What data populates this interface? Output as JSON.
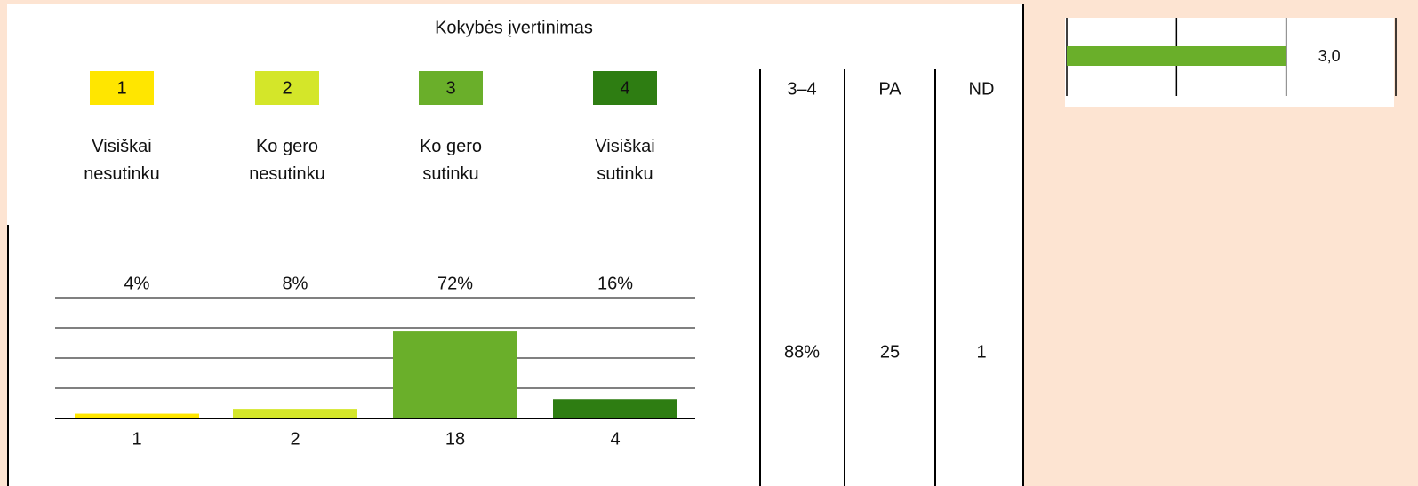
{
  "title": "Kokybės įvertinimas",
  "scale": [
    {
      "code": "1",
      "label": "Visiškai nesutinku",
      "color": "#ffe600"
    },
    {
      "code": "2",
      "label": "Ko gero nesutinku",
      "color": "#d4e629"
    },
    {
      "code": "3",
      "label": "Ko gero sutinku",
      "color": "#6aaf2a"
    },
    {
      "code": "4",
      "label": "Visiškai sutinku",
      "color": "#2e7d12"
    }
  ],
  "table": {
    "header": [
      "3–4",
      "PA",
      "ND"
    ],
    "values": [
      "88%",
      "25",
      "1"
    ]
  },
  "chart_data": [
    {
      "type": "bar",
      "categories": [
        "1",
        "2",
        "3",
        "4"
      ],
      "values": [
        1,
        2,
        18,
        4
      ],
      "percent_labels": [
        "4%",
        "8%",
        "72%",
        "16%"
      ],
      "colors": [
        "#ffe600",
        "#d4e629",
        "#6aaf2a",
        "#2e7d12"
      ],
      "ylim": [
        0,
        25
      ],
      "yticks": [
        0,
        6.25,
        12.5,
        18.75,
        25
      ],
      "grid": true
    },
    {
      "type": "hbar",
      "values": [
        3.0
      ],
      "value_labels": [
        "3,0"
      ],
      "color": "#6aaf2a",
      "xlim": [
        1,
        4
      ],
      "xticks": [
        1,
        2,
        3,
        4
      ],
      "grid": true
    }
  ]
}
